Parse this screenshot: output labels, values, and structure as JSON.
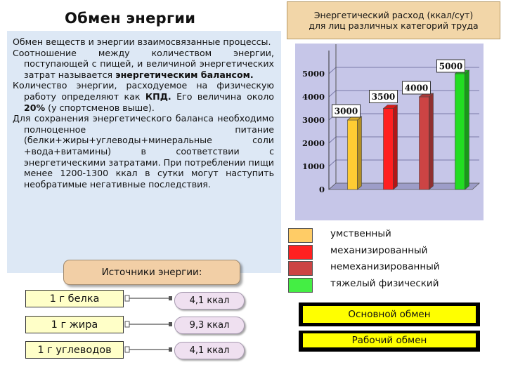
{
  "left": {
    "title": "Обмен энергии",
    "p1": "Обмен веществ и энергии взаимосвязанные процессы.",
    "p2_text": "Соотношение между количеством энергии, поступающей с пищей, и величиной энергетических затрат называется",
    "p2_bold": "энергетическим балансом.",
    "p3_a": "Количество энергии, расходуемое на физическую работу определяют как",
    "p3_kpd": "КПД.",
    "p3_b": "Его величина около",
    "p3_pct": "20%",
    "p3_c": "(у спортсменов выше).",
    "p4": "Для сохранения энергетического баланса необходимо полноценное питание (белки+жиры+углеводы+минеральные соли +вода+витамины) в соответствии с энергетическими затратами. При потреблении пищи менее 1200-1300 ккал в сутки могут наступить необратимые негативные последствия.",
    "sources_title": "Источники энергии:",
    "sources": [
      {
        "name": "1 г белка",
        "value": "4,1 ккал"
      },
      {
        "name": "1 г жира",
        "value": "9,3 ккал"
      },
      {
        "name": "1 г углеводов",
        "value": "4,1 ккал"
      }
    ]
  },
  "right": {
    "chart_title_line1": "Энергетический расход (ккал/сут)",
    "chart_title_line2": "для лиц различных категорий труда",
    "legend": [
      {
        "label": "умственный",
        "color": "#ffcc66"
      },
      {
        "label": "механизированный",
        "color": "#ff2020"
      },
      {
        "label": "немеханизированный",
        "color": "#cc4444"
      },
      {
        "label": "тяжелый физический",
        "color": "#44ee44"
      }
    ],
    "buttons": {
      "basic": "Основной обмен",
      "work": "Рабочий обмен"
    }
  },
  "chart_data": {
    "type": "bar",
    "categories": [
      "умственный",
      "механизированный",
      "немеханизированный",
      "тяжелый физический"
    ],
    "values": [
      3000,
      3500,
      4000,
      5000
    ],
    "value_labels": [
      "3000",
      "3500",
      "4000",
      "5000"
    ],
    "colors": [
      "#ffcc33",
      "#ff2020",
      "#cc4444",
      "#22dd22"
    ],
    "yticks": [
      "0",
      "1000",
      "2000",
      "3000",
      "4000",
      "5000"
    ],
    "ylim": [
      0,
      6000
    ],
    "grid": true,
    "chart_title": "Энергетический расход (ккал/сут) для лиц различных категорий труда"
  }
}
